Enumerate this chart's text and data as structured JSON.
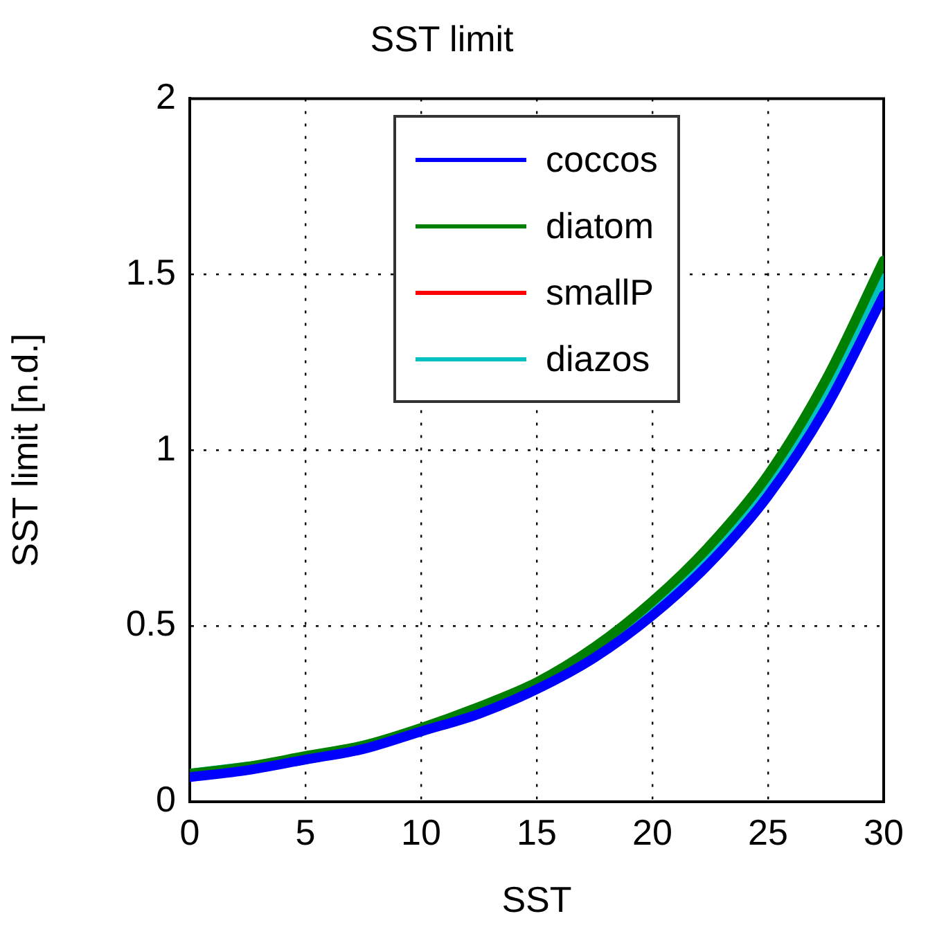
{
  "chart_data": {
    "type": "line",
    "title": "SST limit",
    "xlabel": "SST",
    "ylabel": "SST limit [n.d.]",
    "x": [
      0,
      2.5,
      5,
      7.5,
      10,
      12.5,
      15,
      17.5,
      20,
      22.5,
      25,
      27.5,
      30
    ],
    "xlim": [
      0,
      30
    ],
    "xticks": [
      0,
      5,
      10,
      15,
      20,
      25,
      30
    ],
    "ylim": [
      0,
      2
    ],
    "yticks": [
      0,
      0.5,
      1,
      1.5,
      2
    ],
    "grid": true,
    "legend": "top",
    "marker": "none",
    "line_style": "solid",
    "series": [
      {
        "name": "coccos",
        "color": "#0000ff",
        "values": [
          0.07,
          0.09,
          0.12,
          0.15,
          0.2,
          0.25,
          0.32,
          0.41,
          0.53,
          0.68,
          0.87,
          1.12,
          1.44
        ]
      },
      {
        "name": "diatom",
        "color": "#008000",
        "values": [
          0.08,
          0.1,
          0.13,
          0.16,
          0.21,
          0.27,
          0.34,
          0.44,
          0.57,
          0.73,
          0.93,
          1.2,
          1.54
        ]
      },
      {
        "name": "smallP",
        "color": "#ff0000",
        "values": [
          null,
          null,
          null,
          null,
          null,
          null,
          null,
          null,
          null,
          null,
          null,
          null,
          null
        ]
      },
      {
        "name": "diazos",
        "color": "#00c0c0",
        "values": [
          0.08,
          0.1,
          0.12,
          0.16,
          0.2,
          0.26,
          0.33,
          0.43,
          0.55,
          0.71,
          0.9,
          1.16,
          1.49
        ]
      }
    ]
  }
}
